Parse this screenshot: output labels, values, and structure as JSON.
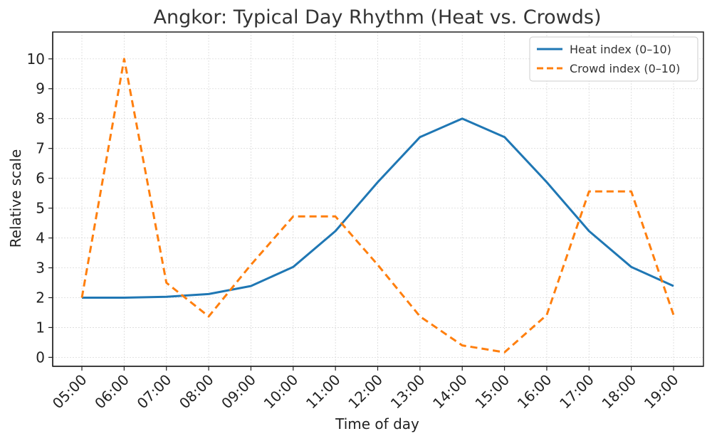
{
  "chart_data": {
    "type": "line",
    "title": "Angkor: Typical Day Rhythm (Heat vs. Crowds)",
    "xlabel": "Time of day",
    "ylabel": "Relative scale",
    "x": [
      "05:00",
      "06:00",
      "07:00",
      "08:00",
      "09:00",
      "10:00",
      "11:00",
      "12:00",
      "13:00",
      "14:00",
      "15:00",
      "16:00",
      "17:00",
      "18:00",
      "19:00"
    ],
    "y_ticks": [
      "0",
      "1",
      "2",
      "3",
      "4",
      "5",
      "6",
      "7",
      "8",
      "9",
      "10"
    ],
    "ylim": [
      -0.3,
      10.9
    ],
    "grid": true,
    "legend_position": "top-right",
    "series": [
      {
        "name": "Heat index (0–10)",
        "color": "#1f77b4",
        "style": "solid",
        "values": [
          2.0,
          2.0,
          2.03,
          2.12,
          2.39,
          3.03,
          4.23,
          5.87,
          7.38,
          8.0,
          7.38,
          5.87,
          4.23,
          3.03,
          2.39
        ]
      },
      {
        "name": "Crowd index (0–10)",
        "color": "#ff7f0e",
        "style": "dashed",
        "values": [
          2.0,
          10.0,
          2.5,
          1.37,
          3.1,
          4.72,
          4.72,
          3.1,
          1.37,
          0.4,
          0.17,
          1.42,
          5.56,
          5.56,
          1.42
        ]
      }
    ]
  }
}
